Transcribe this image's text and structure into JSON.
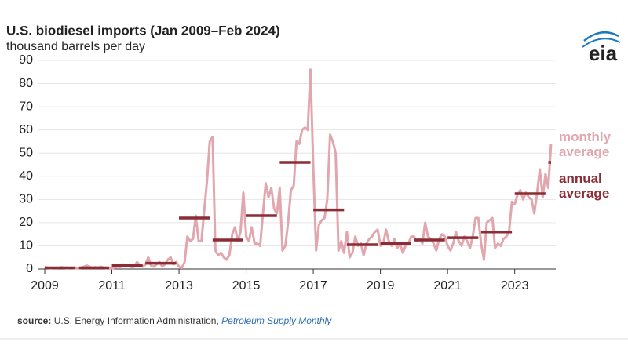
{
  "chart_data": {
    "type": "line",
    "title": "U.S. biodiesel imports (Jan 2009–Feb 2024)",
    "subtitle": "thousand barrels per day",
    "logo": "eia",
    "source": {
      "label": "source:",
      "text": "U.S. Energy Information Administration,",
      "link": "Petroleum Supply Monthly"
    },
    "xticks": [
      2009,
      2011,
      2013,
      2015,
      2017,
      2019,
      2021,
      2023
    ],
    "xlim": [
      2009,
      2024.0833
    ],
    "ylim": [
      0,
      90
    ],
    "yticks": [
      0,
      10,
      20,
      30,
      40,
      50,
      60,
      70,
      80,
      90
    ],
    "grid": true,
    "monthly": {
      "name": "monthly average",
      "color": "#e2a7ae",
      "x": [
        "2009-01",
        "2009-02",
        "2009-03",
        "2009-04",
        "2009-05",
        "2009-06",
        "2009-07",
        "2009-08",
        "2009-09",
        "2009-10",
        "2009-11",
        "2009-12",
        "2010-01",
        "2010-02",
        "2010-03",
        "2010-04",
        "2010-05",
        "2010-06",
        "2010-07",
        "2010-08",
        "2010-09",
        "2010-10",
        "2010-11",
        "2010-12",
        "2011-01",
        "2011-02",
        "2011-03",
        "2011-04",
        "2011-05",
        "2011-06",
        "2011-07",
        "2011-08",
        "2011-09",
        "2011-10",
        "2011-11",
        "2011-12",
        "2012-01",
        "2012-02",
        "2012-03",
        "2012-04",
        "2012-05",
        "2012-06",
        "2012-07",
        "2012-08",
        "2012-09",
        "2012-10",
        "2012-11",
        "2012-12",
        "2013-01",
        "2013-02",
        "2013-03",
        "2013-04",
        "2013-05",
        "2013-06",
        "2013-07",
        "2013-08",
        "2013-09",
        "2013-10",
        "2013-11",
        "2013-12",
        "2014-01",
        "2014-02",
        "2014-03",
        "2014-04",
        "2014-05",
        "2014-06",
        "2014-07",
        "2014-08",
        "2014-09",
        "2014-10",
        "2014-11",
        "2014-12",
        "2015-01",
        "2015-02",
        "2015-03",
        "2015-04",
        "2015-05",
        "2015-06",
        "2015-07",
        "2015-08",
        "2015-09",
        "2015-10",
        "2015-11",
        "2015-12",
        "2016-01",
        "2016-02",
        "2016-03",
        "2016-04",
        "2016-05",
        "2016-06",
        "2016-07",
        "2016-08",
        "2016-09",
        "2016-10",
        "2016-11",
        "2016-12",
        "2017-01",
        "2017-02",
        "2017-03",
        "2017-04",
        "2017-05",
        "2017-06",
        "2017-07",
        "2017-08",
        "2017-09",
        "2017-10",
        "2017-11",
        "2017-12",
        "2018-01",
        "2018-02",
        "2018-03",
        "2018-04",
        "2018-05",
        "2018-06",
        "2018-07",
        "2018-08",
        "2018-09",
        "2018-10",
        "2018-11",
        "2018-12",
        "2019-01",
        "2019-02",
        "2019-03",
        "2019-04",
        "2019-05",
        "2019-06",
        "2019-07",
        "2019-08",
        "2019-09",
        "2019-10",
        "2019-11",
        "2019-12",
        "2020-01",
        "2020-02",
        "2020-03",
        "2020-04",
        "2020-05",
        "2020-06",
        "2020-07",
        "2020-08",
        "2020-09",
        "2020-10",
        "2020-11",
        "2020-12",
        "2021-01",
        "2021-02",
        "2021-03",
        "2021-04",
        "2021-05",
        "2021-06",
        "2021-07",
        "2021-08",
        "2021-09",
        "2021-10",
        "2021-11",
        "2021-12",
        "2022-01",
        "2022-02",
        "2022-03",
        "2022-04",
        "2022-05",
        "2022-06",
        "2022-07",
        "2022-08",
        "2022-09",
        "2022-10",
        "2022-11",
        "2022-12",
        "2023-01",
        "2023-02",
        "2023-03",
        "2023-04",
        "2023-05",
        "2023-06",
        "2023-07",
        "2023-08",
        "2023-09",
        "2023-10",
        "2023-11",
        "2023-12",
        "2024-01",
        "2024-02"
      ],
      "values": [
        1,
        0.5,
        0.3,
        0.5,
        0.4,
        0.5,
        0.8,
        0.5,
        0.3,
        0.5,
        0.4,
        0.3,
        0.2,
        0.5,
        1,
        1.5,
        1,
        0.5,
        0.8,
        0.5,
        1,
        0.6,
        0.3,
        0.2,
        0.3,
        0.5,
        1,
        0.8,
        2,
        1,
        1.5,
        0.8,
        1,
        3,
        1.5,
        1,
        2,
        5,
        1.5,
        1,
        2,
        3,
        1,
        2,
        4,
        5,
        2,
        3,
        1,
        0.5,
        3,
        14,
        12,
        13,
        23,
        12,
        12,
        25,
        38,
        55,
        57,
        8,
        6,
        7,
        5,
        4,
        6,
        15,
        18,
        12,
        16,
        33,
        14,
        12,
        18,
        11,
        11,
        10,
        24,
        37,
        31,
        35,
        26,
        24,
        35,
        8,
        10,
        20,
        34,
        36,
        55,
        54,
        60,
        61,
        60,
        86,
        44,
        8,
        19,
        21,
        22,
        30,
        58,
        55,
        50,
        8,
        12,
        7,
        16,
        5,
        7,
        14,
        10,
        11,
        6,
        11,
        13,
        14,
        16,
        17,
        10,
        11,
        17,
        12,
        10,
        13,
        9,
        11,
        7,
        10,
        11,
        14,
        14,
        12,
        13,
        11,
        20,
        14,
        13,
        11,
        8,
        13,
        15,
        14,
        10,
        8,
        11,
        16,
        12,
        10,
        14,
        12,
        9,
        14,
        22,
        22,
        11,
        4,
        20,
        21,
        22,
        9,
        11,
        10,
        13,
        14,
        16,
        29,
        28,
        32,
        34,
        30,
        33,
        31,
        30,
        24,
        33,
        43,
        31,
        41,
        35,
        54
      ]
    },
    "annual": {
      "name": "annual average",
      "color": "#8c2c35",
      "x": [
        2009,
        2010,
        2011,
        2012,
        2013,
        2014,
        2015,
        2016,
        2017,
        2018,
        2019,
        2020,
        2021,
        2022,
        2023,
        2024
      ],
      "values": [
        0.5,
        0.5,
        1.5,
        2.5,
        22,
        12.5,
        23,
        46,
        25.5,
        10.5,
        11,
        12.5,
        13.5,
        16,
        32.5,
        46
      ]
    }
  }
}
